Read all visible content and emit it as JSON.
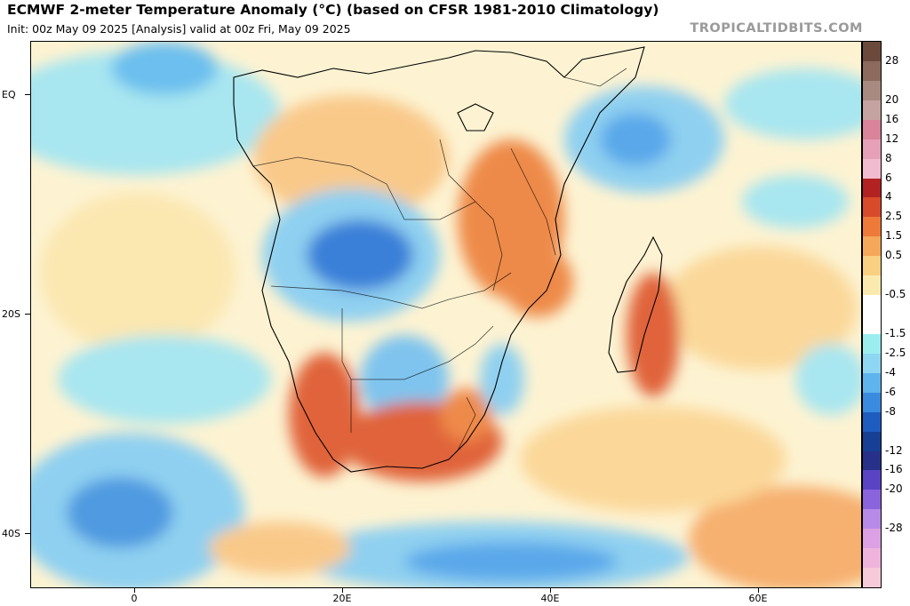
{
  "header": {
    "title": "ECMWF 2-meter Temperature Anomaly (°C) (based on CFSR 1981-2010 Climatology)",
    "subtitle": "Init: 00z May 09 2025   [Analysis]   valid at 00z Fri, May 09 2025",
    "brand": "TROPICALTIDBITS.COM"
  },
  "axes": {
    "y_labels": [
      "EQ",
      "20S",
      "40S"
    ],
    "x_labels": [
      "0",
      "20E",
      "40E",
      "60E"
    ]
  },
  "colorbar": {
    "labels": [
      "28",
      "20",
      "16",
      "12",
      "8",
      "6",
      "4",
      "2.5",
      "1.5",
      "0.5",
      "-0.5",
      "-1.5",
      "-2.5",
      "-4",
      "-6",
      "-8",
      "-12",
      "-16",
      "-20",
      "-28"
    ],
    "colors": [
      "#6b4a3c",
      "#8c6b5e",
      "#a88a80",
      "#c4a3a0",
      "#d9849a",
      "#e6a0b8",
      "#f2bcd0",
      "#b22222",
      "#d94a2a",
      "#ee7a3a",
      "#f5a85a",
      "#f9cf82",
      "#fbeab0",
      "#ffffff",
      "#ffffff",
      "#9ceeee",
      "#8fd6f2",
      "#5fb4ee",
      "#3a8ae0",
      "#1f5cc0",
      "#173f95",
      "#27318a",
      "#5a44c4",
      "#8a64dc",
      "#b88ae8",
      "#dca0e4",
      "#eeb4dc",
      "#f6cad8"
    ]
  }
}
